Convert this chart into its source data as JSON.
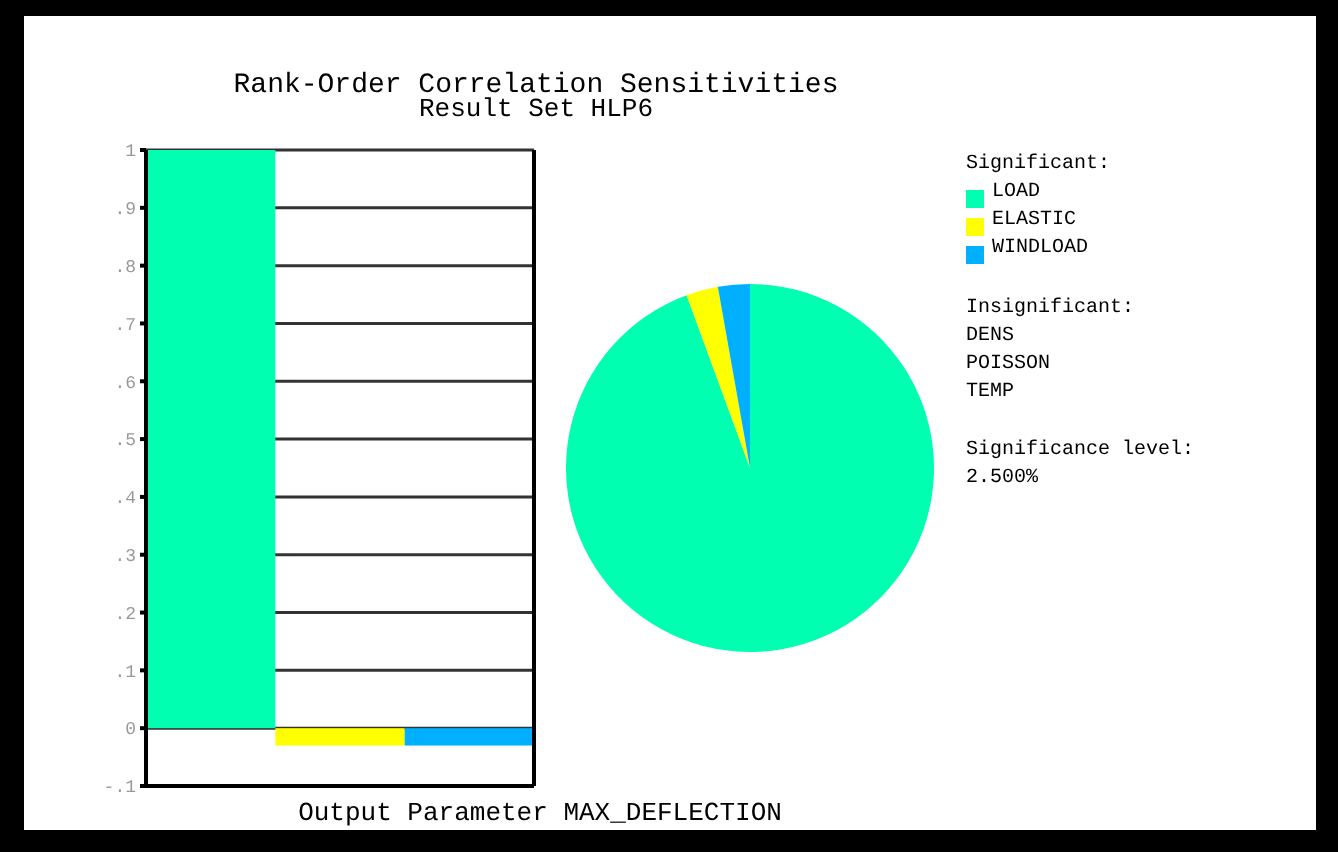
{
  "chart_data": [
    {
      "type": "bar",
      "title": "Rank-Order Correlation Sensitivities",
      "subtitle": "Result Set HLP6",
      "xlabel": "Output Parameter MAX_DEFLECTION",
      "categories": [
        null,
        null,
        null
      ],
      "values": [
        1.0,
        -0.03,
        -0.03
      ],
      "colors": [
        "#00ffb0",
        "#ffff00",
        "#00b0ff"
      ],
      "ylim": [
        -0.1,
        1
      ],
      "yticks": [
        {
          "value": -0.1,
          "label": "-.1"
        },
        0,
        {
          "value": 0.1,
          "label": ".1"
        },
        {
          "value": 0.2,
          "label": ".2"
        },
        {
          "value": 0.3,
          "label": ".3"
        },
        {
          "value": 0.4,
          "label": ".4"
        },
        {
          "value": 0.5,
          "label": ".5"
        },
        {
          "value": 0.6,
          "label": ".6"
        },
        {
          "value": 0.7,
          "label": ".7"
        },
        {
          "value": 0.8,
          "label": ".8"
        },
        {
          "value": 0.9,
          "label": ".9"
        },
        1
      ],
      "grid": "y"
    },
    {
      "type": "pie",
      "categories": [
        "LOAD",
        "ELASTIC",
        "WINDLOAD"
      ],
      "values": [
        94.4,
        2.8,
        2.8
      ],
      "colors": [
        "#00ffb0",
        "#ffff00",
        "#00b0ff"
      ],
      "legend": "right",
      "legend_title": "Significant:",
      "annotations": [
        "Insignificant:",
        "DENS",
        "POISSON",
        "TEMP",
        "Significance level:",
        "2.500%"
      ]
    }
  ]
}
